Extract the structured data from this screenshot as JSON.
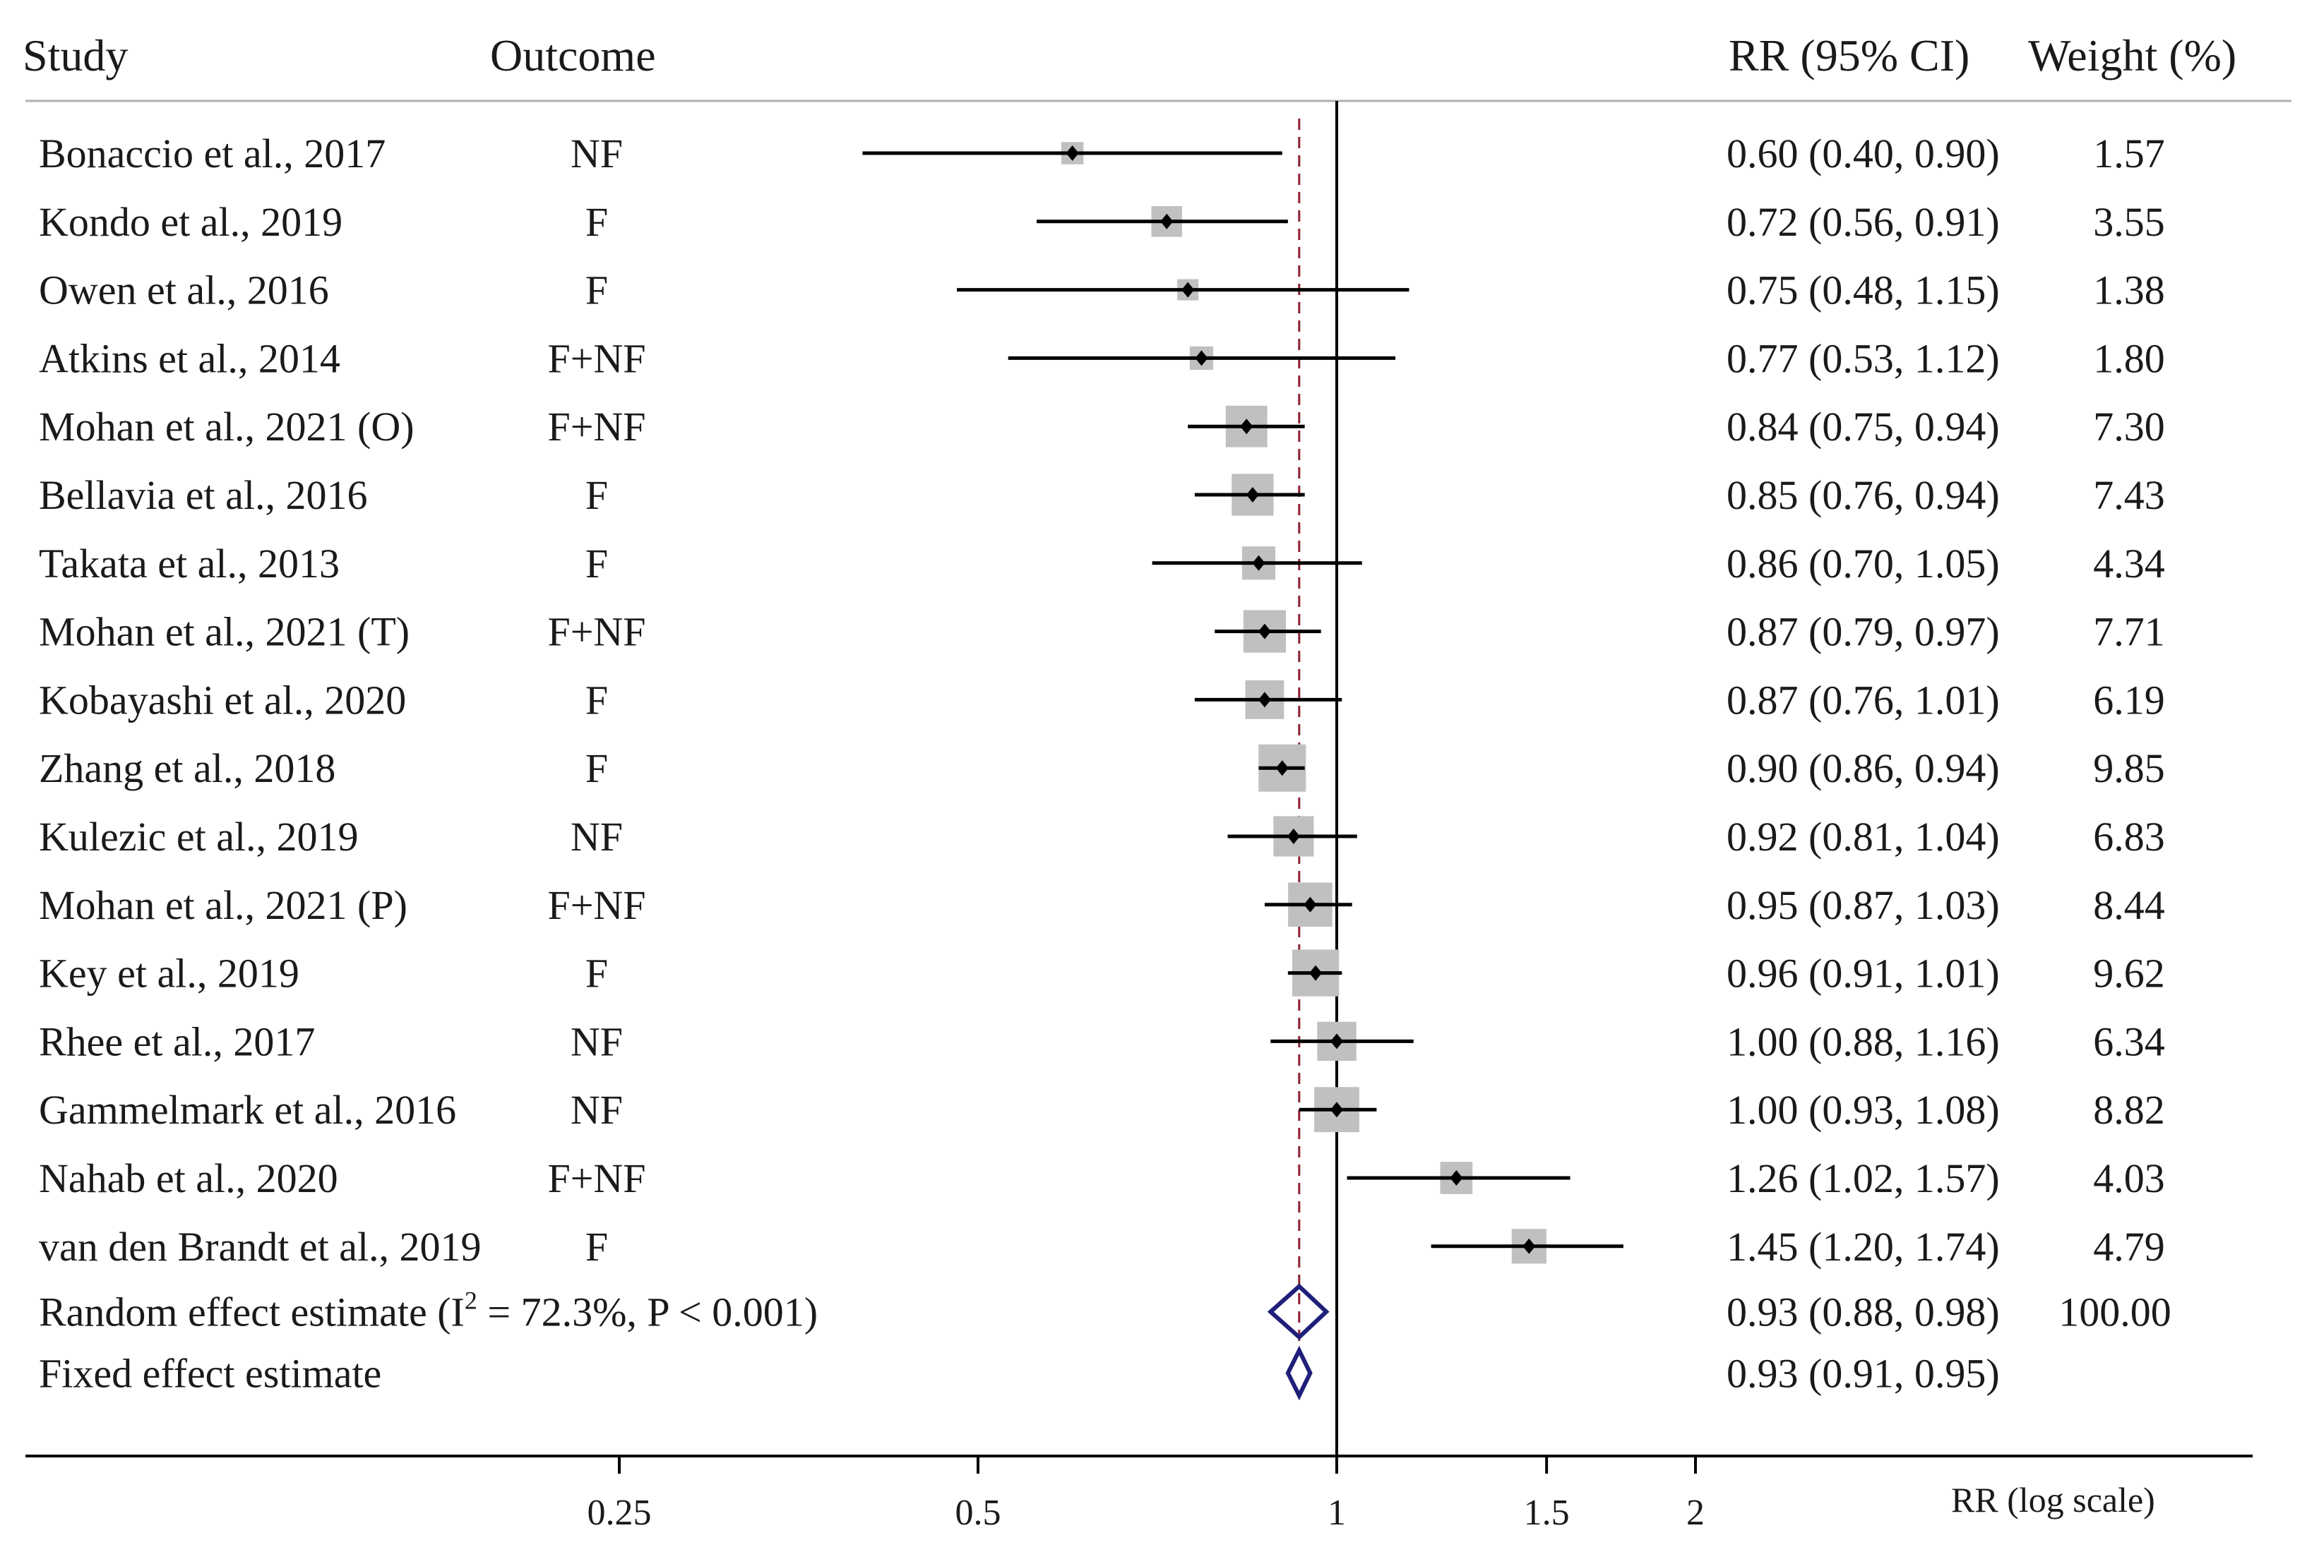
{
  "chart_data": {
    "type": "forest",
    "headers": {
      "study": "Study",
      "outcome": "Outcome",
      "rr": "RR (95% CI)",
      "weight": "Weight (%)"
    },
    "studies": [
      {
        "study": "Bonaccio et al., 2017",
        "outcome": "NF",
        "rr": 0.6,
        "lo": 0.4,
        "hi": 0.9,
        "rr_text": "0.60 (0.40, 0.90)",
        "weight": 1.57,
        "weight_text": "1.57"
      },
      {
        "study": "Kondo et al., 2019",
        "outcome": "F",
        "rr": 0.72,
        "lo": 0.56,
        "hi": 0.91,
        "rr_text": "0.72 (0.56, 0.91)",
        "weight": 3.55,
        "weight_text": "3.55"
      },
      {
        "study": "Owen et al., 2016",
        "outcome": "F",
        "rr": 0.75,
        "lo": 0.48,
        "hi": 1.15,
        "rr_text": "0.75 (0.48, 1.15)",
        "weight": 1.38,
        "weight_text": "1.38"
      },
      {
        "study": "Atkins et al., 2014",
        "outcome": "F+NF",
        "rr": 0.77,
        "lo": 0.53,
        "hi": 1.12,
        "rr_text": "0.77 (0.53, 1.12)",
        "weight": 1.8,
        "weight_text": "1.80"
      },
      {
        "study": "Mohan et al., 2021 (O)",
        "outcome": "F+NF",
        "rr": 0.84,
        "lo": 0.75,
        "hi": 0.94,
        "rr_text": "0.84 (0.75, 0.94)",
        "weight": 7.3,
        "weight_text": "7.30"
      },
      {
        "study": "Bellavia et al., 2016",
        "outcome": "F",
        "rr": 0.85,
        "lo": 0.76,
        "hi": 0.94,
        "rr_text": "0.85 (0.76, 0.94)",
        "weight": 7.43,
        "weight_text": "7.43"
      },
      {
        "study": "Takata et al., 2013",
        "outcome": "F",
        "rr": 0.86,
        "lo": 0.7,
        "hi": 1.05,
        "rr_text": "0.86 (0.70, 1.05)",
        "weight": 4.34,
        "weight_text": "4.34"
      },
      {
        "study": "Mohan et al., 2021 (T)",
        "outcome": "F+NF",
        "rr": 0.87,
        "lo": 0.79,
        "hi": 0.97,
        "rr_text": "0.87 (0.79, 0.97)",
        "weight": 7.71,
        "weight_text": "7.71"
      },
      {
        "study": "Kobayashi et al., 2020",
        "outcome": "F",
        "rr": 0.87,
        "lo": 0.76,
        "hi": 1.01,
        "rr_text": "0.87 (0.76, 1.01)",
        "weight": 6.19,
        "weight_text": "6.19"
      },
      {
        "study": "Zhang et al., 2018",
        "outcome": "F",
        "rr": 0.9,
        "lo": 0.86,
        "hi": 0.94,
        "rr_text": "0.90 (0.86, 0.94)",
        "weight": 9.85,
        "weight_text": "9.85"
      },
      {
        "study": "Kulezic et al., 2019",
        "outcome": "NF",
        "rr": 0.92,
        "lo": 0.81,
        "hi": 1.04,
        "rr_text": "0.92 (0.81, 1.04)",
        "weight": 6.83,
        "weight_text": "6.83"
      },
      {
        "study": "Mohan et al., 2021 (P)",
        "outcome": "F+NF",
        "rr": 0.95,
        "lo": 0.87,
        "hi": 1.03,
        "rr_text": "0.95 (0.87, 1.03)",
        "weight": 8.44,
        "weight_text": "8.44"
      },
      {
        "study": "Key et al., 2019",
        "outcome": "F",
        "rr": 0.96,
        "lo": 0.91,
        "hi": 1.01,
        "rr_text": "0.96 (0.91, 1.01)",
        "weight": 9.62,
        "weight_text": "9.62"
      },
      {
        "study": "Rhee et al., 2017",
        "outcome": "NF",
        "rr": 1.0,
        "lo": 0.88,
        "hi": 1.16,
        "rr_text": "1.00 (0.88, 1.16)",
        "weight": 6.34,
        "weight_text": "6.34"
      },
      {
        "study": "Gammelmark et al., 2016",
        "outcome": "NF",
        "rr": 1.0,
        "lo": 0.93,
        "hi": 1.08,
        "rr_text": "1.00 (0.93, 1.08)",
        "weight": 8.82,
        "weight_text": "8.82"
      },
      {
        "study": "Nahab et al., 2020",
        "outcome": "F+NF",
        "rr": 1.26,
        "lo": 1.02,
        "hi": 1.57,
        "rr_text": "1.26 (1.02, 1.57)",
        "weight": 4.03,
        "weight_text": "4.03"
      },
      {
        "study": "van den Brandt et al., 2019",
        "outcome": "F",
        "rr": 1.45,
        "lo": 1.2,
        "hi": 1.74,
        "rr_text": "1.45 (1.20, 1.74)",
        "weight": 4.79,
        "weight_text": "4.79"
      }
    ],
    "pooled": [
      {
        "label": "Random effect estimate",
        "label_prefix": "Random effect estimate (I",
        "label_sup": "2",
        "label_suffix": " = 72.3%, P < 0.001)",
        "rr": 0.93,
        "lo": 0.88,
        "hi": 0.98,
        "rr_text": "0.93 (0.88, 0.98)",
        "weight_text": "100.00"
      },
      {
        "label": "Fixed effect estimate",
        "rr": 0.93,
        "lo": 0.91,
        "hi": 0.95,
        "rr_text": "0.93 (0.91, 0.95)",
        "weight_text": ""
      }
    ],
    "x_axis": {
      "scale": "log",
      "label": "RR (log scale)",
      "ticks": [
        0.25,
        0.5,
        1,
        1.5,
        2
      ],
      "tick_labels": [
        "0.25",
        "0.5",
        "1",
        "1.5",
        "2"
      ],
      "range": [
        0.18,
        3.6
      ]
    },
    "reference_line": 1,
    "pooled_reference_line": 0.93,
    "colors": {
      "text": "#1a1a1a",
      "ci_line": "#000000",
      "weight_box": "#c0c0c0",
      "point": "#000000",
      "diamond": "#1f1f7a",
      "pooled_line": "#8b2030",
      "axis": "#000000",
      "header_rule": "#b0b0b0"
    }
  }
}
